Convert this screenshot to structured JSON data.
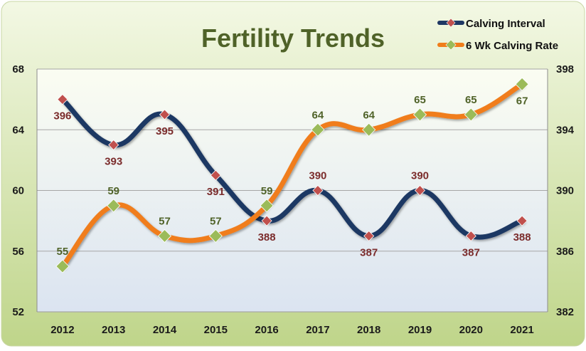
{
  "chart_data": {
    "type": "line",
    "title": "Fertility Trends",
    "categories": [
      "2012",
      "2013",
      "2014",
      "2015",
      "2016",
      "2017",
      "2018",
      "2019",
      "2020",
      "2021"
    ],
    "y_left": {
      "min": 52,
      "max": 68,
      "ticks": [
        "52",
        "56",
        "60",
        "64",
        "68"
      ]
    },
    "y_right": {
      "min": 382,
      "max": 398,
      "ticks": [
        "382",
        "386",
        "390",
        "394",
        "398"
      ]
    },
    "grid": true,
    "legend_position": "top-right",
    "series": [
      {
        "name": "Calving Interval",
        "axis": "right",
        "values": [
          396,
          393,
          395,
          391,
          388,
          390,
          387,
          390,
          387,
          388
        ],
        "labels": [
          "396",
          "393",
          "395",
          "391",
          "388",
          "390",
          "387",
          "390",
          "387",
          "388"
        ],
        "line_color": "#1f3864",
        "marker_color": "#c0504d",
        "label_color": "#7b2c2c"
      },
      {
        "name": "6 Wk Calving Rate",
        "axis": "left",
        "values": [
          55,
          59,
          57,
          57,
          59,
          64,
          64,
          65,
          65,
          67
        ],
        "labels": [
          "55",
          "59",
          "57",
          "57",
          "59",
          "64",
          "64",
          "65",
          "65",
          "67"
        ],
        "line_color": "#f07d1b",
        "marker_color": "#9bbb59",
        "label_color": "#4f6228"
      }
    ],
    "colors": {
      "frame_top": "#f3f8e4",
      "frame_bottom": "#bfd58a",
      "plot_top": "#fbfdf2",
      "plot_bottom": "#dbe4f1",
      "title": "#4f6228",
      "grid": "#a6a6a6",
      "axis_text": "#1a1a1a"
    }
  }
}
